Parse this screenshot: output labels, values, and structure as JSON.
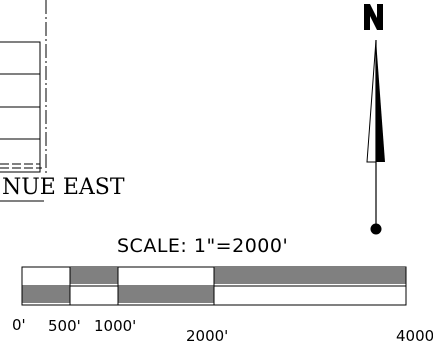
{
  "street": {
    "label": "NUE EAST"
  },
  "north_arrow": {
    "icon": "north-arrow-icon"
  },
  "scale": {
    "title": "SCALE:  1\"=2000'",
    "ticks": [
      {
        "value": 0,
        "label": "0'"
      },
      {
        "value": 500,
        "label": "500'"
      },
      {
        "value": 1000,
        "label": "1000'"
      },
      {
        "value": 2000,
        "label": "2000'"
      },
      {
        "value": 4000,
        "label": "4000'"
      }
    ]
  }
}
